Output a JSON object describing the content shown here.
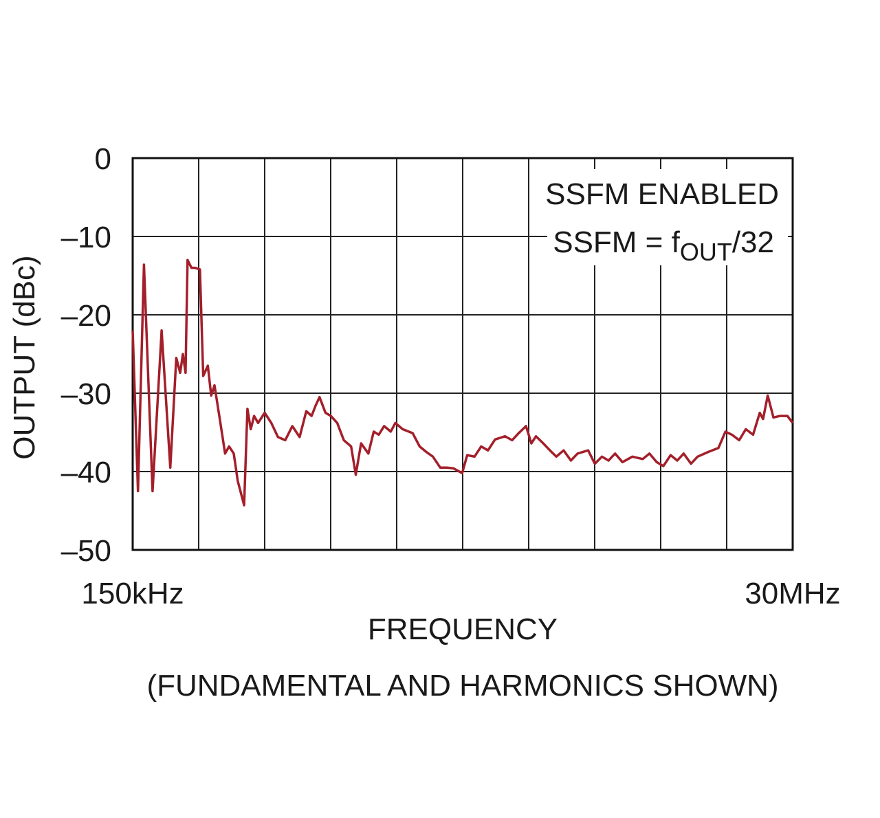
{
  "chart_data": {
    "type": "line",
    "ylabel": "OUTPUT (dBc)",
    "xlabel": "FREQUENCY",
    "xlabel_note": "(FUNDAMENTAL AND HARMONICS SHOWN)",
    "annotation": [
      "SSFM ENABLED",
      "SSFM = f",
      "OUT",
      "/32"
    ],
    "color": "#a31f2a",
    "grid": true,
    "xlim": [
      0.15,
      30
    ],
    "xticks": [
      {
        "value": 0.15,
        "label": "150kHz"
      },
      {
        "value": 30,
        "label": "30MHz"
      }
    ],
    "ylim": [
      -50,
      0
    ],
    "yticks": [
      {
        "value": 0,
        "label": "0"
      },
      {
        "value": -10,
        "label": "–10"
      },
      {
        "value": -20,
        "label": "–20"
      },
      {
        "value": -30,
        "label": "–30"
      },
      {
        "value": -40,
        "label": "–40"
      },
      {
        "value": -50,
        "label": "–50"
      }
    ],
    "x": [
      0.15,
      0.39,
      0.66,
      1.05,
      1.46,
      1.85,
      2.12,
      2.3,
      2.42,
      2.54,
      2.63,
      2.81,
      2.96,
      3.19,
      3.34,
      3.55,
      3.7,
      3.85,
      4.09,
      4.33,
      4.51,
      4.72,
      4.9,
      5.19,
      5.34,
      5.49,
      5.64,
      5.82,
      6.12,
      6.42,
      6.72,
      7.05,
      7.37,
      7.7,
      8.0,
      8.24,
      8.42,
      8.6,
      8.87,
      9.11,
      9.4,
      9.7,
      10.03,
      10.24,
      10.48,
      10.81,
      11.05,
      11.28,
      11.52,
      11.82,
      12.03,
      12.36,
      12.81,
      13.13,
      13.43,
      13.73,
      14.06,
      14.36,
      14.66,
      15.05,
      15.28,
      15.61,
      15.91,
      16.22,
      16.54,
      16.99,
      17.31,
      17.61,
      17.94,
      18.18,
      18.39,
      18.72,
      19.02,
      19.31,
      19.64,
      19.97,
      20.27,
      20.75,
      21.05,
      21.37,
      21.67,
      21.97,
      22.3,
      22.75,
      23.22,
      23.52,
      23.85,
      24.15,
      24.48,
      24.78,
      25.07,
      25.4,
      25.7,
      26.18,
      26.64,
      26.96,
      27.25,
      27.58,
      27.88,
      28.21,
      28.51,
      28.66,
      28.87,
      29.13,
      29.43,
      29.76,
      30
    ],
    "values": [
      -22,
      -42.5,
      -13.6,
      -42.5,
      -22,
      -39.5,
      -25.5,
      -27.4,
      -25,
      -27.4,
      -13,
      -14,
      -14,
      -14.2,
      -27.8,
      -26.5,
      -30.3,
      -29,
      -33.3,
      -37.7,
      -36.8,
      -37.7,
      -41.2,
      -44.3,
      -32,
      -34.6,
      -32.9,
      -33.8,
      -32.5,
      -33.8,
      -35.6,
      -36,
      -34.2,
      -35.6,
      -32.3,
      -32.9,
      -31.6,
      -30.5,
      -32.5,
      -32.9,
      -33.8,
      -36,
      -36.8,
      -40.4,
      -36.4,
      -37.7,
      -34.9,
      -35.3,
      -34.2,
      -34.9,
      -33.8,
      -34.6,
      -35.1,
      -36.8,
      -37.5,
      -38.1,
      -39.5,
      -39.5,
      -39.6,
      -40.2,
      -37.9,
      -38.1,
      -36.8,
      -37.3,
      -35.9,
      -35.5,
      -36,
      -35.1,
      -34.2,
      -36.4,
      -35.5,
      -36.4,
      -37.3,
      -38.1,
      -37.3,
      -38.6,
      -37.7,
      -37.3,
      -39,
      -38.1,
      -38.6,
      -37.7,
      -38.8,
      -38.1,
      -38.4,
      -37.7,
      -38.8,
      -39.3,
      -37.9,
      -38.6,
      -37.7,
      -39,
      -38.1,
      -37.5,
      -37,
      -34.9,
      -35.3,
      -36,
      -34.6,
      -35.3,
      -32.5,
      -33.3,
      -30.3,
      -33.1,
      -32.9,
      -32.9,
      -33.8
    ]
  }
}
